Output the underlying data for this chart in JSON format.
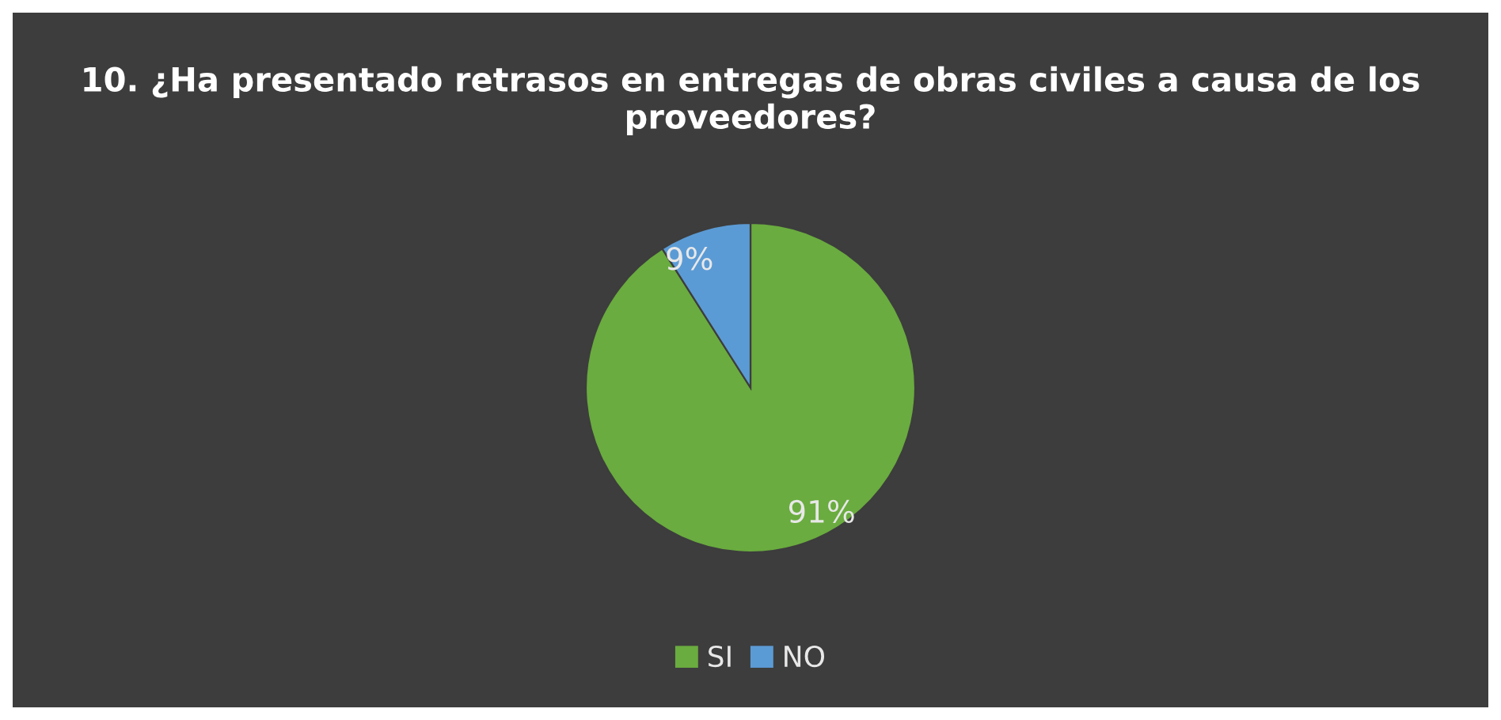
{
  "chart_data": {
    "type": "pie",
    "title": "10. ¿Ha presentado retrasos en entregas de obras civiles a causa de los proveedores?",
    "categories": [
      "SI",
      "NO"
    ],
    "values": [
      91,
      9
    ],
    "colors": [
      "#6aac3f",
      "#5b9bd5"
    ],
    "value_labels": [
      "91%",
      "9%"
    ],
    "legend": "bottom"
  }
}
